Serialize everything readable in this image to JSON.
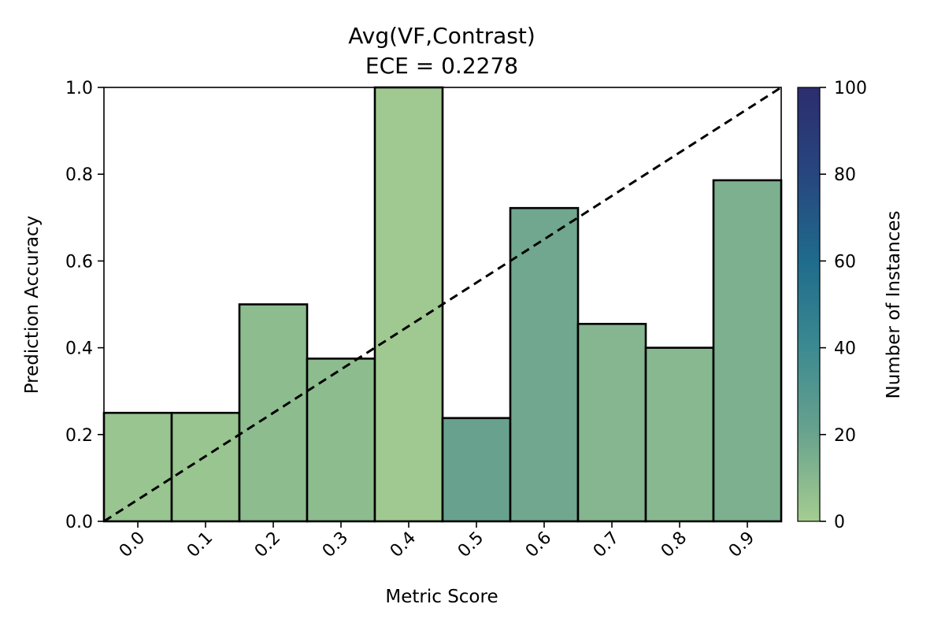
{
  "chart_data": {
    "type": "bar",
    "title": "Avg(VF,Contrast)",
    "subtitle": "ECE = 0.2278",
    "xlabel": "Metric Score",
    "ylabel": "Prediction Accuracy",
    "categories": [
      "0.0",
      "0.1",
      "0.2",
      "0.3",
      "0.4",
      "0.5",
      "0.6",
      "0.7",
      "0.8",
      "0.9"
    ],
    "x": [
      0.0,
      0.1,
      0.2,
      0.3,
      0.4,
      0.5,
      0.6,
      0.7,
      0.8,
      0.9
    ],
    "values": [
      0.25,
      0.25,
      0.5,
      0.375,
      1.0,
      0.238,
      0.722,
      0.455,
      0.4,
      0.786
    ],
    "counts": [
      4,
      4,
      8,
      8,
      2,
      21,
      18,
      11,
      10,
      14
    ],
    "xlim": [
      -0.05,
      0.95
    ],
    "ylim": [
      0.0,
      1.0
    ],
    "yticks": [
      "0.0",
      "0.2",
      "0.4",
      "0.6",
      "0.8",
      "1.0"
    ],
    "reference_line": "diagonal dashed",
    "grid": false,
    "colorbar": {
      "label": "Number of Instances",
      "range": [
        0,
        100
      ],
      "ticks": [
        "0",
        "20",
        "40",
        "60",
        "80",
        "100"
      ],
      "colors": [
        "#a5cd90",
        "#6aa38e",
        "#3c8a91",
        "#1f6b8c",
        "#27467f",
        "#2c2d6e"
      ]
    }
  }
}
